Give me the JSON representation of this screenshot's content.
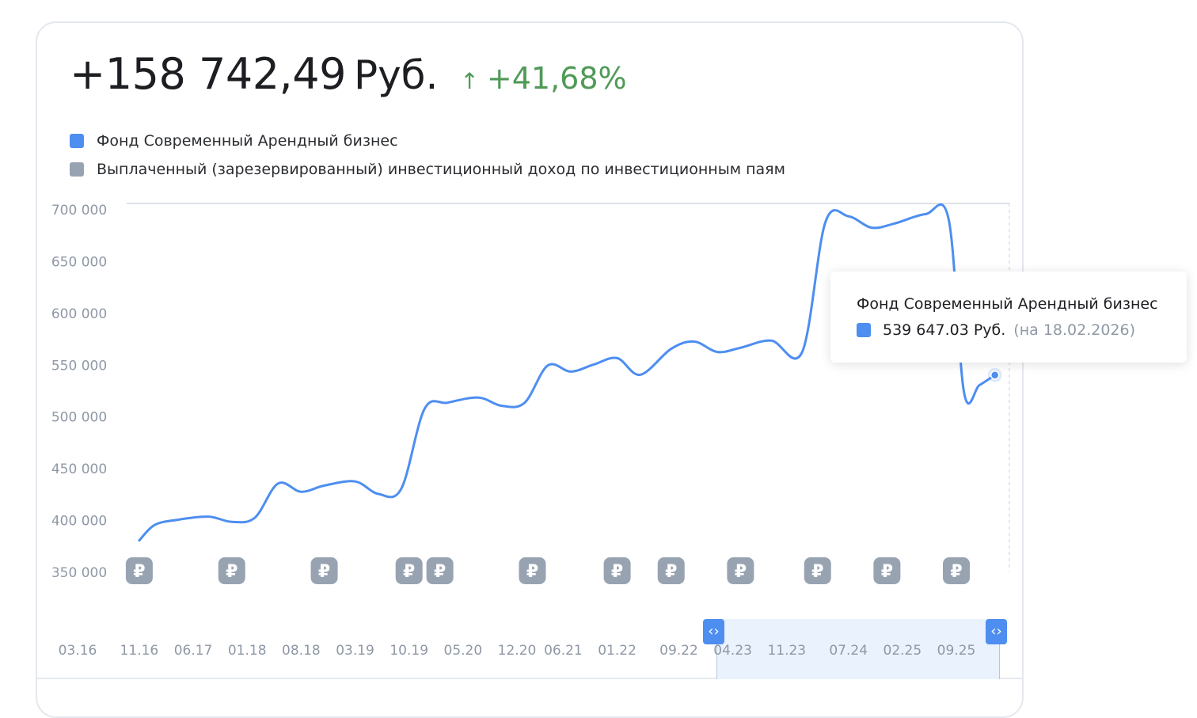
{
  "summary": {
    "amount": "+158 742,49",
    "currency": "Руб.",
    "change_arrow": "↑",
    "change": "+41,68%"
  },
  "colors": {
    "series_fund": "#4d8ef0",
    "series_income": "#98a3b2",
    "positive": "#4f9a57"
  },
  "legend": [
    {
      "label": "Фонд Современный Арендный бизнес",
      "color": "#4d8ef0"
    },
    {
      "label": "Выплаченный (зарезервированный) инвестиционный доход по инвестиционным паям",
      "color": "#98a3b2"
    }
  ],
  "tooltip": {
    "title": "Фонд Современный Арендный бизнес",
    "value": "539 647.03 Руб.",
    "date": "(на 18.02.2026)"
  },
  "range_handle_icon": "chevron-left-right-icon",
  "dividend_icon": "ruble-sign-icon",
  "chart_data": {
    "type": "line",
    "ylim": [
      350000,
      700000
    ],
    "y_ticks": [
      "700 000",
      "650 000",
      "600 000",
      "550 000",
      "500 000",
      "450 000",
      "400 000",
      "350 000"
    ],
    "y_tick_values": [
      700000,
      650000,
      600000,
      550000,
      500000,
      450000,
      400000,
      350000
    ],
    "x_ticks": [
      "03.16",
      "11.16",
      "06.17",
      "01.18",
      "08.18",
      "03.19",
      "10.19",
      "05.20",
      "12.20",
      "06.21",
      "01.22",
      "09.22",
      "04.23",
      "11.23",
      "07.24",
      "02.25",
      "09.25"
    ],
    "x_tick_values": [
      "2016-03",
      "2016-11",
      "2017-06",
      "2018-01",
      "2018-08",
      "2019-03",
      "2019-10",
      "2020-05",
      "2020-12",
      "2021-06",
      "2022-01",
      "2022-09",
      "2023-04",
      "2023-11",
      "2024-07",
      "2025-02",
      "2025-09"
    ],
    "series": [
      {
        "name": "Фонд Современный Арендный бизнес",
        "points": [
          [
            "2016-11",
            380000
          ],
          [
            "2017-01",
            395000
          ],
          [
            "2017-04",
            400000
          ],
          [
            "2017-08",
            403000
          ],
          [
            "2017-11",
            398000
          ],
          [
            "2018-02",
            402000
          ],
          [
            "2018-05",
            435000
          ],
          [
            "2018-08",
            427000
          ],
          [
            "2018-11",
            433000
          ],
          [
            "2019-03",
            437000
          ],
          [
            "2019-06",
            425000
          ],
          [
            "2019-09",
            430000
          ],
          [
            "2019-12",
            507000
          ],
          [
            "2020-03",
            513000
          ],
          [
            "2020-07",
            518000
          ],
          [
            "2020-10",
            510000
          ],
          [
            "2021-01",
            513000
          ],
          [
            "2021-04",
            549000
          ],
          [
            "2021-07",
            543000
          ],
          [
            "2021-10",
            550000
          ],
          [
            "2022-01",
            556000
          ],
          [
            "2022-04",
            540000
          ],
          [
            "2022-08",
            565000
          ],
          [
            "2022-11",
            572000
          ],
          [
            "2023-02",
            562000
          ],
          [
            "2023-05",
            566000
          ],
          [
            "2023-09",
            573000
          ],
          [
            "2024-01",
            562000
          ],
          [
            "2024-04",
            687000
          ],
          [
            "2024-07",
            693000
          ],
          [
            "2024-10",
            682000
          ],
          [
            "2025-01",
            686000
          ],
          [
            "2025-05",
            695000
          ],
          [
            "2025-08",
            690000
          ],
          [
            "2025-10",
            523000
          ],
          [
            "2025-12",
            530000
          ],
          [
            "2026-02",
            539647.03
          ]
        ]
      },
      {
        "name": "Выплаченный (зарезервированный) инвестиционный доход по инвестиционным паям",
        "marker": "₽",
        "dates": [
          "2016-11",
          "2017-11",
          "2018-11",
          "2019-10",
          "2020-02",
          "2021-02",
          "2022-01",
          "2022-08",
          "2023-05",
          "2024-03",
          "2024-12",
          "2025-09"
        ]
      }
    ],
    "selected_range": [
      "2023-03",
      "2026-02"
    ],
    "grid": false,
    "legend_position": "top-left"
  }
}
